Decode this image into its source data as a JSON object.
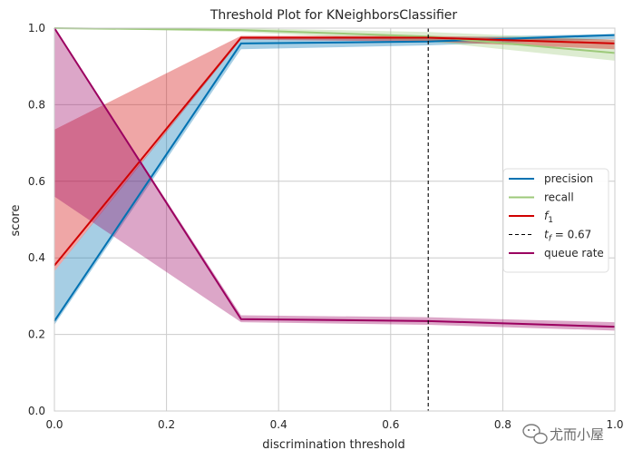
{
  "chart_data": {
    "type": "line",
    "title": "Threshold Plot for KNeighborsClassifier",
    "xlabel": "discrimination threshold",
    "ylabel": "score",
    "xlim": [
      0.0,
      1.0
    ],
    "ylim": [
      0.0,
      1.0
    ],
    "xticks": [
      "0.0",
      "0.2",
      "0.4",
      "0.6",
      "0.8",
      "1.0"
    ],
    "yticks": [
      "0.0",
      "0.2",
      "0.4",
      "0.6",
      "0.8",
      "1.0"
    ],
    "grid": true,
    "legend_position": "center-right",
    "series": [
      {
        "name": "precision",
        "color": "#0072b2",
        "x": [
          0.0,
          0.333,
          0.667,
          1.0
        ],
        "values": [
          0.235,
          0.96,
          0.965,
          0.982
        ],
        "band_upper": [
          0.365,
          0.975,
          0.975,
          0.985
        ],
        "band_lower": [
          0.225,
          0.945,
          0.955,
          0.972
        ]
      },
      {
        "name": "recall",
        "color": "#9dc97a",
        "x": [
          0.0,
          0.333,
          0.667,
          1.0
        ],
        "values": [
          1.0,
          0.995,
          0.978,
          0.935
        ],
        "band_upper": [
          1.0,
          1.0,
          0.99,
          0.97
        ],
        "band_lower": [
          1.0,
          0.99,
          0.965,
          0.915
        ]
      },
      {
        "name": "$f_1$",
        "color": "#d00000",
        "x": [
          0.0,
          0.333,
          0.667,
          1.0
        ],
        "values": [
          0.38,
          0.975,
          0.975,
          0.96
        ],
        "band_upper": [
          0.735,
          0.98,
          0.98,
          0.97
        ],
        "band_lower": [
          0.365,
          0.97,
          0.965,
          0.945
        ]
      },
      {
        "name": "queue rate",
        "color": "#9b0060",
        "x": [
          0.0,
          0.333,
          0.667,
          1.0
        ],
        "values": [
          1.0,
          0.24,
          0.235,
          0.22
        ],
        "band_upper": [
          1.0,
          0.25,
          0.245,
          0.232
        ],
        "band_lower": [
          0.56,
          0.232,
          0.225,
          0.21
        ]
      }
    ],
    "threshold": {
      "label": "$t_f = 0.67$",
      "x": 0.667,
      "color": "#000000"
    },
    "legend": [
      "precision",
      "recall",
      "f1",
      "t_f = 0.67",
      "queue rate"
    ]
  },
  "watermark": {
    "text": "尤而小屋",
    "icon": "wechat-icon"
  }
}
